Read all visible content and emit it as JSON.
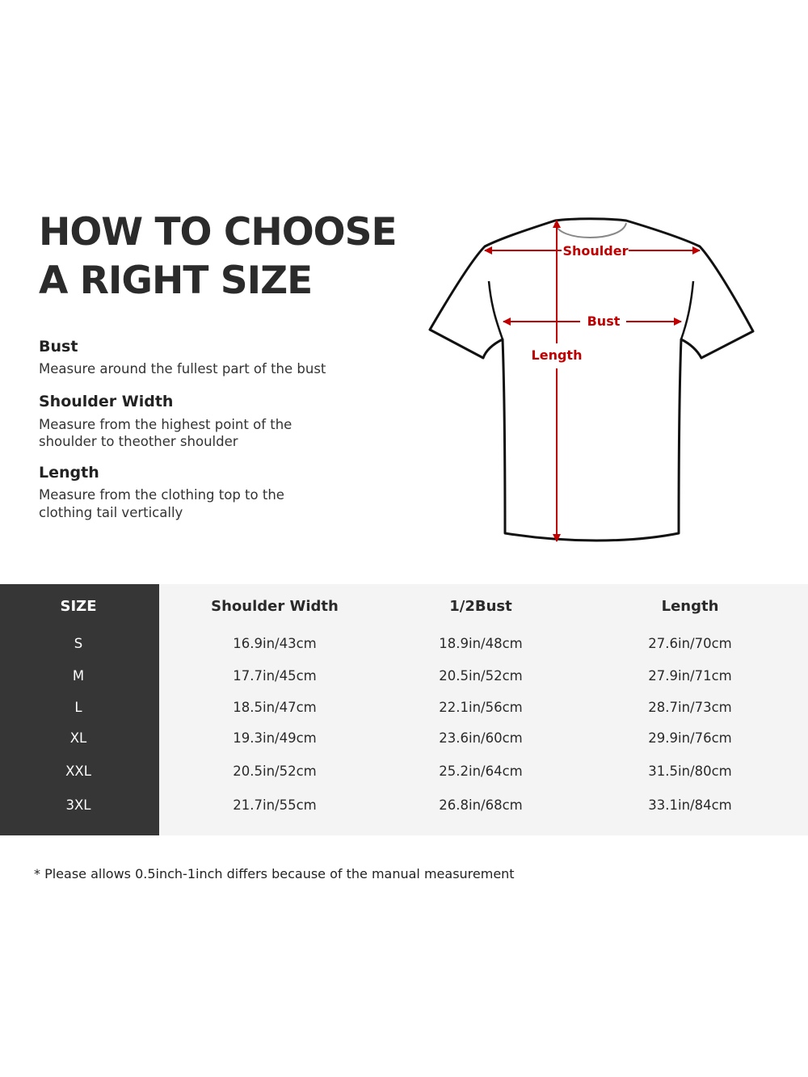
{
  "title": [
    "HOW TO CHOOSE",
    "A RIGHT SIZE"
  ],
  "guide": [
    {
      "heading": "Bust",
      "desc": [
        "Measure around the fullest part of the bust"
      ]
    },
    {
      "heading": "Shoulder Width",
      "desc": [
        "Measure from the highest point of the",
        "shoulder to theother shoulder"
      ]
    },
    {
      "heading": "Length",
      "desc": [
        "Measure from the clothing top to the",
        "clothing tail vertically"
      ]
    }
  ],
  "diagram": {
    "labels": {
      "shoulder": "Shoulder",
      "bust": "Bust",
      "length": "Length"
    },
    "colors": {
      "arrow": "#c00000",
      "outline": "#111111"
    }
  },
  "table": {
    "headers": [
      "SIZE",
      "Shoulder Width",
      "1/2Bust",
      "Length"
    ],
    "rows": [
      [
        "S",
        "16.9in/43cm",
        "18.9in/48cm",
        "27.6in/70cm"
      ],
      [
        "M",
        "17.7in/45cm",
        "20.5in/52cm",
        "27.9in/71cm"
      ],
      [
        "L",
        "18.5in/47cm",
        "22.1in/56cm",
        "28.7in/73cm"
      ],
      [
        "XL",
        "19.3in/49cm",
        "23.6in/60cm",
        "29.9in/76cm"
      ],
      [
        "XXL",
        "20.5in/52cm",
        "25.2in/64cm",
        "31.5in/80cm"
      ],
      [
        "3XL",
        "21.7in/55cm",
        "26.8in/68cm",
        "33.1in/84cm"
      ]
    ],
    "colors": {
      "size_column": "#363636",
      "background": "#f4f4f4"
    }
  },
  "note": "* Please allows 0.5inch-1inch differs because of the  manual measurement"
}
